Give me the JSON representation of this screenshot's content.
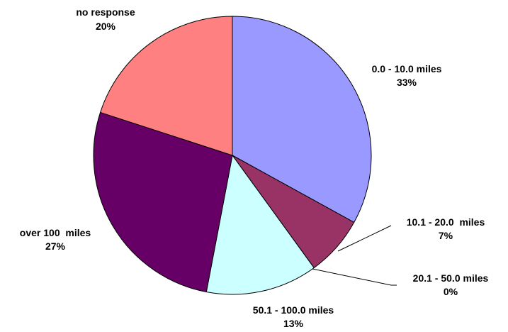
{
  "chart_data": {
    "type": "pie",
    "title": "",
    "slices": [
      {
        "label": "0.0 - 10.0 miles",
        "pct_label": "33%",
        "value": 33,
        "color": "#9999ff"
      },
      {
        "label": "10.1 - 20.0  miles",
        "pct_label": "7%",
        "value": 7,
        "color": "#993366"
      },
      {
        "label": "20.1 - 50.0 miles",
        "pct_label": "0%",
        "value": 0,
        "color": "#ffffcc"
      },
      {
        "label": "50.1 - 100.0 miles",
        "pct_label": "13%",
        "value": 13,
        "color": "#ccffff"
      },
      {
        "label": "over 100  miles",
        "pct_label": "27%",
        "value": 27,
        "color": "#660066"
      },
      {
        "label": "no response",
        "pct_label": "20%",
        "value": 20,
        "color": "#ff8080"
      }
    ],
    "legend": "none"
  }
}
